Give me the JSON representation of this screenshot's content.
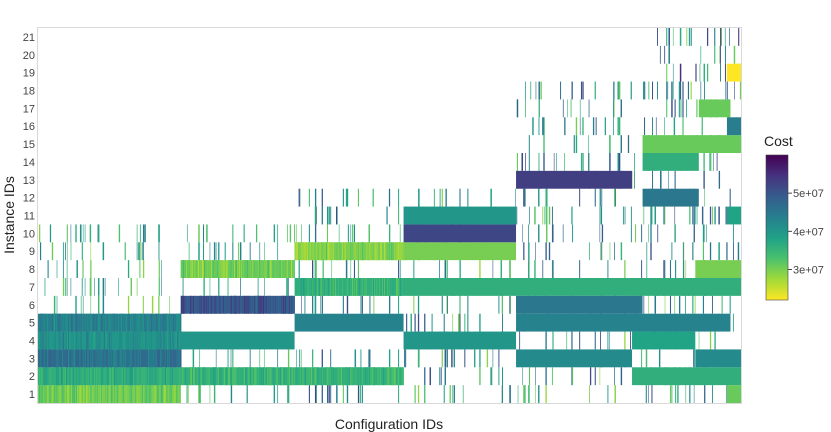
{
  "chart_data": {
    "type": "heatmap",
    "title": "",
    "xlabel": "Configuration IDs",
    "ylabel": "Instance IDs",
    "y_categories": [
      "1",
      "2",
      "3",
      "4",
      "5",
      "6",
      "7",
      "8",
      "9",
      "10",
      "11",
      "12",
      "13",
      "14",
      "15",
      "16",
      "17",
      "18",
      "19",
      "20",
      "21"
    ],
    "x_range": [
      0,
      1000
    ],
    "x_tick_labels": [],
    "grid": false,
    "legend_position": "right",
    "colorscale": "viridis-reversed",
    "colorscale_stops": [
      "#fde725",
      "#a0da39",
      "#4ac16d",
      "#1fa187",
      "#277f8e",
      "#365c8d",
      "#46327e",
      "#440154"
    ],
    "color_range": [
      22000000,
      60000000
    ],
    "colorbar": {
      "title": "Cost",
      "ticks": [
        {
          "value": 30000000,
          "label": "3e+07"
        },
        {
          "value": 40000000,
          "label": "4e+07"
        },
        {
          "value": 50000000,
          "label": "5e+07"
        }
      ]
    },
    "blocks": [
      {
        "instance": 1,
        "x": [
          0,
          203
        ],
        "value": 30000000
      },
      {
        "instance": 2,
        "x": [
          0,
          520
        ],
        "value": 36000000
      },
      {
        "instance": 3,
        "x": [
          0,
          203
        ],
        "value": 47000000
      },
      {
        "instance": 4,
        "x": [
          0,
          365
        ],
        "value": 40000000
      },
      {
        "instance": 5,
        "x": [
          0,
          203
        ],
        "value": 44000000
      },
      {
        "instance": 5,
        "x": [
          365,
          520
        ],
        "value": 43000000
      },
      {
        "instance": 6,
        "x": [
          203,
          365
        ],
        "value": 49000000
      },
      {
        "instance": 7,
        "x": [
          365,
          1000
        ],
        "value": 36000000
      },
      {
        "instance": 8,
        "x": [
          203,
          365
        ],
        "value": 31000000
      },
      {
        "instance": 9,
        "x": [
          365,
          680
        ],
        "value": 30000000
      },
      {
        "instance": 10,
        "x": [
          520,
          680
        ],
        "value": 52000000
      },
      {
        "instance": 11,
        "x": [
          520,
          680
        ],
        "value": 40000000
      },
      {
        "instance": 13,
        "x": [
          680,
          845
        ],
        "value": 53000000
      },
      {
        "instance": 2,
        "x": [
          845,
          1000
        ],
        "value": 36000000
      },
      {
        "instance": 3,
        "x": [
          680,
          845
        ],
        "value": 42000000
      },
      {
        "instance": 3,
        "x": [
          935,
          1000
        ],
        "value": 42000000
      },
      {
        "instance": 4,
        "x": [
          520,
          680
        ],
        "value": 40000000
      },
      {
        "instance": 4,
        "x": [
          845,
          935
        ],
        "value": 38000000
      },
      {
        "instance": 5,
        "x": [
          680,
          985
        ],
        "value": 43000000
      },
      {
        "instance": 6,
        "x": [
          680,
          860
        ],
        "value": 45000000
      },
      {
        "instance": 8,
        "x": [
          935,
          1000
        ],
        "value": 30000000
      },
      {
        "instance": 12,
        "x": [
          860,
          940
        ],
        "value": 45000000
      },
      {
        "instance": 14,
        "x": [
          860,
          940
        ],
        "value": 36000000
      },
      {
        "instance": 15,
        "x": [
          860,
          1000
        ],
        "value": 31000000
      },
      {
        "instance": 16,
        "x": [
          980,
          1000
        ],
        "value": 44000000
      },
      {
        "instance": 17,
        "x": [
          940,
          985
        ],
        "value": 31000000
      },
      {
        "instance": 19,
        "x": [
          980,
          1000
        ],
        "value": 22000000
      },
      {
        "instance": 11,
        "x": [
          980,
          1000
        ],
        "value": 38000000
      },
      {
        "instance": 1,
        "x": [
          980,
          1000
        ],
        "value": 31000000
      }
    ],
    "block_texture": [
      {
        "instance": 1,
        "x": [
          0,
          203
        ],
        "value": 31000000
      },
      {
        "instance": 2,
        "x": [
          0,
          203
        ],
        "value": 37000000
      },
      {
        "instance": 3,
        "x": [
          0,
          203
        ],
        "value": 45000000
      },
      {
        "instance": 4,
        "x": [
          0,
          203
        ],
        "value": 41000000
      },
      {
        "instance": 5,
        "x": [
          0,
          203
        ],
        "value": 43000000
      },
      {
        "instance": 6,
        "x": [
          203,
          365
        ],
        "value": 51000000
      },
      {
        "instance": 8,
        "x": [
          203,
          365
        ],
        "value": 30000000
      },
      {
        "instance": 2,
        "x": [
          203,
          520
        ],
        "value": 35000000
      },
      {
        "instance": 9,
        "x": [
          365,
          520
        ],
        "value": 29000000
      },
      {
        "instance": 7,
        "x": [
          365,
          520
        ],
        "value": 35000000
      }
    ],
    "sparse_columns": [
      {
        "x": [
          520,
          1000
        ],
        "instances": [
          1,
          2,
          3,
          4,
          5,
          6,
          7,
          8,
          9,
          10,
          11,
          12
        ],
        "value_range": [
          28000000,
          52000000
        ]
      },
      {
        "x": [
          365,
          520
        ],
        "instances": [
          1,
          3,
          6,
          8,
          10,
          11,
          12
        ],
        "value_range": [
          30000000,
          52000000
        ]
      },
      {
        "x": [
          203,
          365
        ],
        "instances": [
          1,
          3,
          7,
          9,
          10
        ],
        "value_range": [
          30000000,
          45000000
        ]
      },
      {
        "x": [
          0,
          203
        ],
        "instances": [
          6,
          7,
          8,
          9,
          10
        ],
        "value_range": [
          28000000,
          45000000
        ]
      },
      {
        "x": [
          680,
          1000
        ],
        "instances": [
          13,
          14,
          15,
          16,
          17,
          18
        ],
        "value_range": [
          30000000,
          52000000
        ]
      },
      {
        "x": [
          880,
          1000
        ],
        "instances": [
          17,
          18,
          19,
          20,
          21
        ],
        "value_range": [
          28000000,
          55000000
        ]
      }
    ]
  }
}
